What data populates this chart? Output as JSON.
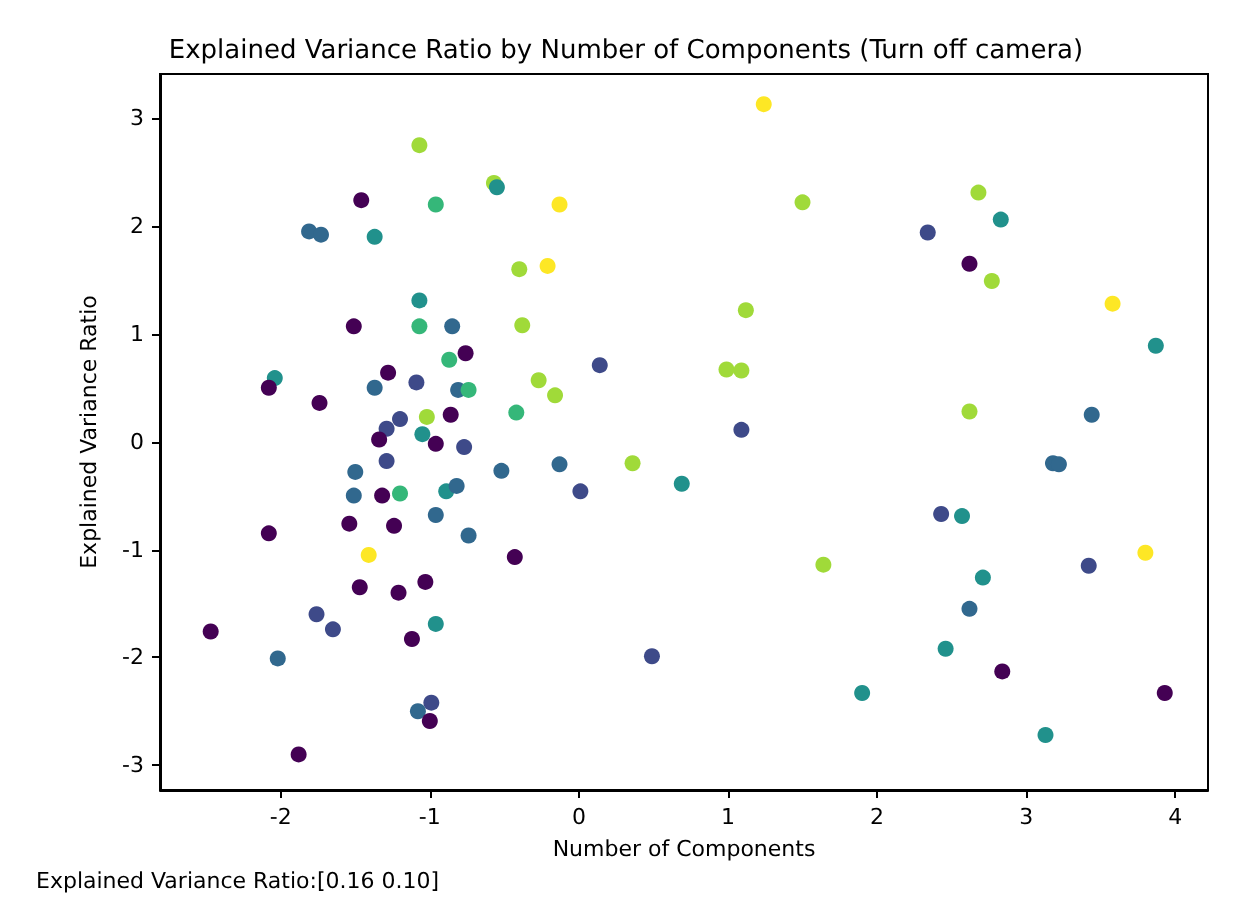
{
  "chart_data": {
    "type": "scatter",
    "title": "Explained Variance Ratio by Number of Components (Turn off camera)",
    "xlabel": "Number of Components",
    "ylabel": "Explained Variance Ratio",
    "annotations": [
      "Explained Variance Ratio:[0.16 0.10]"
    ],
    "x": [
      -1.07,
      -0.57,
      -0.55,
      -1.46,
      -0.96,
      -1.81,
      -1.73,
      -1.37,
      -0.4,
      -1.07,
      -1.51,
      -1.07,
      -0.85,
      -0.38,
      -0.76,
      -0.87,
      -1.28,
      -2.04,
      -2.08,
      -1.37,
      -1.09,
      -0.81,
      -0.74,
      -1.74,
      -0.42,
      -1.02,
      -0.86,
      -1.2,
      -1.29,
      -1.34,
      -1.05,
      -0.96,
      -0.77,
      -1.5,
      -1.29,
      -1.51,
      -1.32,
      -1.2,
      -0.89,
      -0.82,
      -0.52,
      -2.08,
      -1.54,
      -1.24,
      -0.96,
      -0.74,
      -1.41,
      -0.43,
      -1.03,
      -1.47,
      -1.21,
      -1.76,
      -1.65,
      -2.47,
      -0.96,
      -1.12,
      -2.02,
      -0.99,
      -1.08,
      -1.0,
      -1.88,
      1.24,
      1.5,
      -0.13,
      -0.21,
      1.12,
      0.14,
      -0.27,
      -0.16,
      0.99,
      1.09,
      1.09,
      -0.13,
      0.01,
      0.36,
      0.69,
      1.64,
      0.49,
      2.68,
      2.83,
      2.34,
      2.62,
      2.77,
      3.58,
      3.87,
      2.62,
      3.44,
      3.18,
      3.22,
      2.43,
      2.57,
      3.8,
      3.42,
      2.71,
      2.62,
      2.46,
      2.84,
      1.9,
      3.93,
      3.13
    ],
    "values": [
      2.75,
      2.4,
      2.36,
      2.24,
      2.2,
      1.95,
      1.92,
      1.9,
      1.6,
      1.31,
      1.07,
      1.07,
      1.07,
      1.08,
      0.82,
      0.76,
      0.64,
      0.59,
      0.5,
      0.5,
      0.55,
      0.48,
      0.48,
      0.36,
      0.27,
      0.23,
      0.25,
      0.21,
      0.12,
      0.02,
      0.07,
      -0.02,
      -0.05,
      -0.28,
      -0.18,
      -0.5,
      -0.5,
      -0.48,
      -0.46,
      -0.41,
      -0.27,
      -0.85,
      -0.76,
      -0.78,
      -0.68,
      -0.87,
      -1.05,
      -1.07,
      -1.3,
      -1.35,
      -1.4,
      -1.6,
      -1.74,
      -1.76,
      -1.69,
      -1.83,
      -2.01,
      -2.42,
      -2.5,
      -2.59,
      -2.9,
      3.13,
      2.22,
      2.2,
      1.63,
      1.22,
      0.71,
      0.57,
      0.43,
      0.67,
      0.66,
      0.11,
      -0.21,
      -0.46,
      -0.2,
      -0.39,
      -1.14,
      -1.99,
      2.31,
      2.06,
      1.94,
      1.65,
      1.49,
      1.28,
      0.89,
      0.28,
      0.25,
      -0.2,
      -0.21,
      -0.67,
      -0.69,
      -1.03,
      -1.15,
      -1.26,
      -1.55,
      -1.92,
      -2.13,
      -2.33,
      -2.33,
      -2.72
    ],
    "colors": [
      "#a0da39",
      "#a0da39",
      "#21918c",
      "#440154",
      "#35b779",
      "#31688e",
      "#31688e",
      "#21918c",
      "#a0da39",
      "#21918c",
      "#440154",
      "#35b779",
      "#31688e",
      "#a0da39",
      "#440154",
      "#35b779",
      "#440154",
      "#21918c",
      "#440154",
      "#31688e",
      "#3e4a89",
      "#31688e",
      "#35b779",
      "#440154",
      "#35b779",
      "#a0da39",
      "#440154",
      "#3e4a89",
      "#3e4a89",
      "#440154",
      "#21918c",
      "#440154",
      "#3e4a89",
      "#31688e",
      "#3e4a89",
      "#31688e",
      "#440154",
      "#35b779",
      "#21918c",
      "#31688e",
      "#31688e",
      "#440154",
      "#440154",
      "#440154",
      "#31688e",
      "#31688e",
      "#fde725",
      "#440154",
      "#440154",
      "#440154",
      "#440154",
      "#3e4a89",
      "#3e4a89",
      "#440154",
      "#21918c",
      "#440154",
      "#31688e",
      "#3e4a89",
      "#31688e",
      "#440154",
      "#440154",
      "#fde725",
      "#a0da39",
      "#fde725",
      "#fde725",
      "#a0da39",
      "#3e4a89",
      "#a0da39",
      "#a0da39",
      "#a0da39",
      "#a0da39",
      "#3e4a89",
      "#31688e",
      "#3e4a89",
      "#a0da39",
      "#21918c",
      "#a0da39",
      "#3e4a89",
      "#a0da39",
      "#21918c",
      "#3e4a89",
      "#440154",
      "#a0da39",
      "#fde725",
      "#21918c",
      "#a0da39",
      "#31688e",
      "#31688e",
      "#31688e",
      "#3e4a89",
      "#21918c",
      "#fde725",
      "#3e4a89",
      "#21918c",
      "#31688e",
      "#21918c",
      "#440154",
      "#21918c",
      "#440154",
      "#21918c"
    ],
    "xlim": [
      -2.81,
      4.22
    ],
    "ylim": [
      -3.23,
      3.41
    ],
    "xticks": [
      -2,
      -1,
      0,
      1,
      2,
      3,
      4
    ],
    "yticks": [
      -3,
      -2,
      -1,
      0,
      1,
      2,
      3
    ],
    "grid": false,
    "marker": "circle"
  }
}
